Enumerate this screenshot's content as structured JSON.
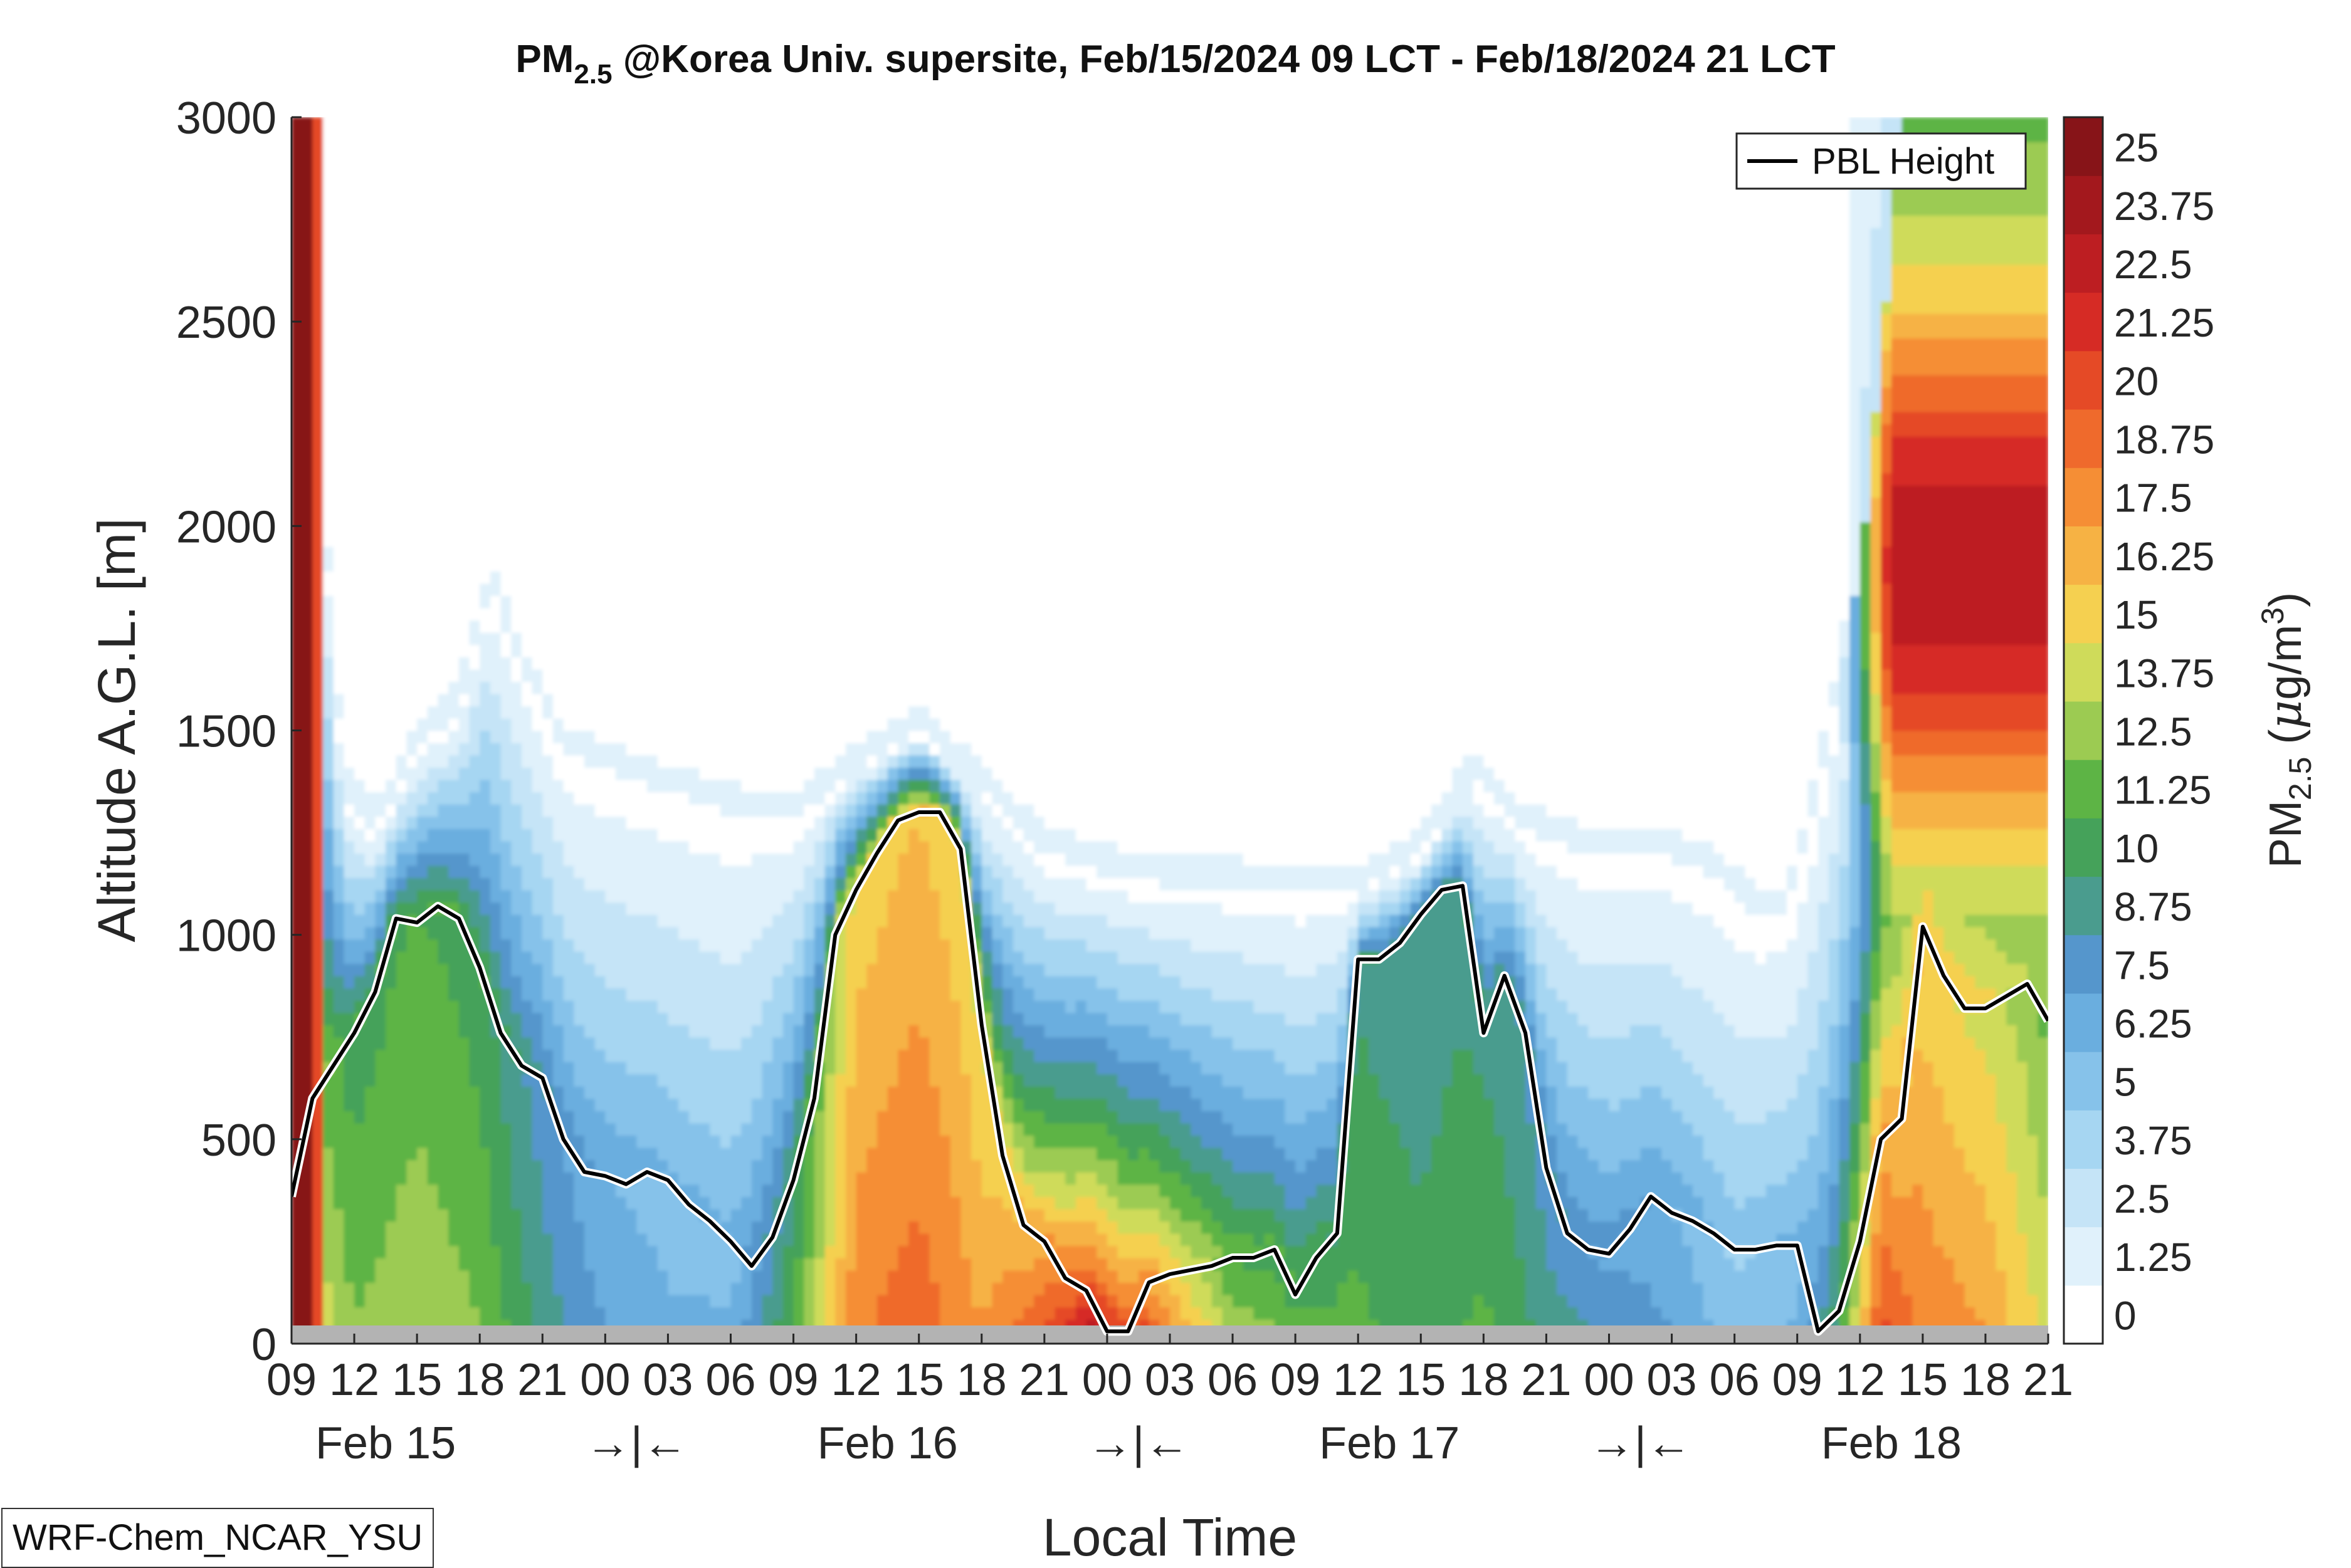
{
  "chart_data": {
    "type": "heatmap",
    "title": {
      "prefix": "PM",
      "sub": "2.5",
      "rest": " @Korea Univ. supersite, Feb/15/2024 09 LCT - Feb/18/2024 21 LCT"
    },
    "xlabel": "Local Time",
    "ylabel": "Altitude A.G.L. [m]",
    "colorbar_label": {
      "prefix": "PM",
      "sub": "2.5",
      "unit_open": " (",
      "mu": "μ",
      "unit": "g/m",
      "sup": "3",
      "unit_close": ")"
    },
    "x_range_hours": [
      0,
      84
    ],
    "ylim": [
      0,
      3000
    ],
    "y_ticks": [
      "0",
      "500",
      "1000",
      "1500",
      "2000",
      "2500",
      "3000"
    ],
    "x_ticks": [
      "09",
      "12",
      "15",
      "18",
      "21",
      "00",
      "03",
      "06",
      "09",
      "12",
      "15",
      "18",
      "21",
      "00",
      "03",
      "06",
      "09",
      "12",
      "15",
      "18",
      "21",
      "00",
      "03",
      "06",
      "09",
      "12",
      "15",
      "18",
      "21"
    ],
    "day_labels": [
      "Feb 15",
      "→|←",
      "Feb 16",
      "→|←",
      "Feb 17",
      "→|←",
      "Feb 18"
    ],
    "legend": {
      "entry": "PBL Height",
      "position": "top-right"
    },
    "source_tag": "WRF-Chem_NCAR_YSU",
    "colorbar_ticks": [
      "0",
      "1.25",
      "2.5",
      "3.75",
      "5",
      "6.25",
      "7.5",
      "8.75",
      "10",
      "11.25",
      "12.5",
      "13.75",
      "15",
      "16.25",
      "17.5",
      "18.75",
      "20",
      "21.25",
      "22.5",
      "23.75",
      "25"
    ],
    "colorscale": [
      "#ffffff",
      "#e0f1fb",
      "#c5e4f7",
      "#a6d6f2",
      "#86c2ea",
      "#6aaedf",
      "#5596cc",
      "#4a9c8e",
      "#45a25a",
      "#5db445",
      "#9ccb52",
      "#cfdb5a",
      "#f5d050",
      "#f6b244",
      "#f58e35",
      "#ef6a2c",
      "#e54a26",
      "#d62b25",
      "#bd1e22",
      "#a3181d",
      "#871418"
    ],
    "pbl_height": {
      "name": "PBL Height",
      "hours": [
        0,
        1,
        3,
        4,
        5,
        6,
        7,
        8,
        9,
        10,
        11,
        12,
        13,
        14,
        15,
        16,
        17,
        18,
        19,
        20,
        21,
        22,
        23,
        24,
        25,
        26,
        27,
        28,
        29,
        30,
        31,
        32,
        33,
        34,
        35,
        36,
        37,
        38,
        39,
        40,
        41,
        42,
        43,
        44,
        45,
        46,
        47,
        48,
        49,
        50,
        51,
        52,
        53,
        54,
        55,
        56,
        57,
        58,
        59,
        60,
        61,
        62,
        63,
        64,
        65,
        66,
        67,
        68,
        69,
        70,
        71,
        72,
        73,
        74,
        75,
        76,
        77,
        78,
        79,
        80,
        81,
        82,
        83,
        84
      ],
      "values": [
        360,
        600,
        760,
        860,
        1040,
        1030,
        1070,
        1040,
        920,
        760,
        680,
        650,
        500,
        420,
        410,
        390,
        420,
        400,
        340,
        300,
        250,
        190,
        260,
        400,
        600,
        1000,
        1110,
        1200,
        1280,
        1300,
        1300,
        1210,
        780,
        460,
        290,
        250,
        160,
        130,
        30,
        30,
        150,
        170,
        180,
        190,
        210,
        210,
        230,
        120,
        210,
        270,
        940,
        940,
        980,
        1050,
        1110,
        1120,
        760,
        900,
        760,
        430,
        270,
        230,
        220,
        280,
        360,
        320,
        300,
        270,
        230,
        230,
        240,
        240,
        30,
        80,
        250,
        500,
        550,
        1020,
        900,
        820,
        820,
        850,
        880,
        790
      ]
    },
    "fields": {
      "surface_plume": {
        "hours": [
          0,
          84
        ],
        "heights_m": [
          0,
          3000
        ],
        "range": [
          0,
          25
        ]
      },
      "mixed_layer": {
        "hours": [
          0,
          84
        ],
        "heights_m": [
          0,
          3000
        ],
        "range": [
          0,
          25
        ]
      }
    }
  }
}
